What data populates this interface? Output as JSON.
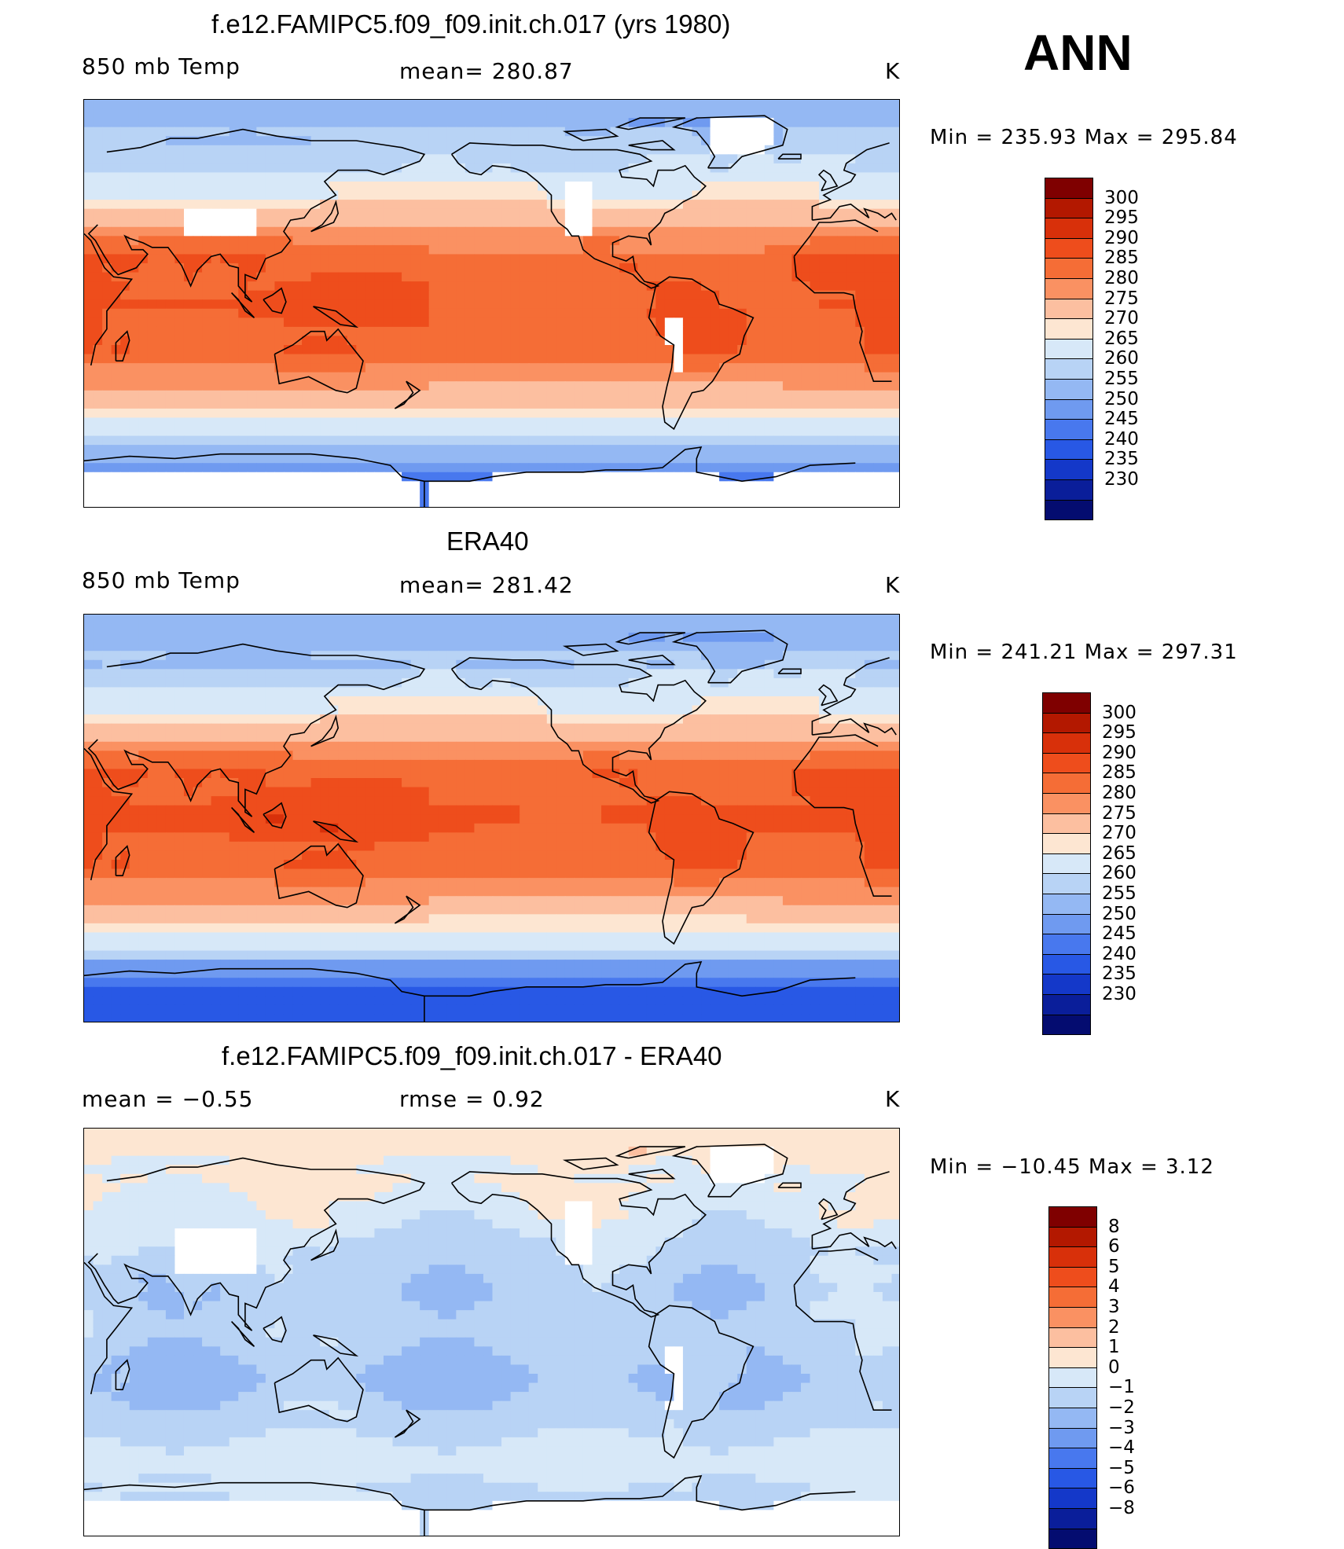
{
  "season": "ANN",
  "palette": {
    "temp": [
      "#7f0000",
      "#b31800",
      "#d8300a",
      "#ee4d1c",
      "#f56d36",
      "#fa9162",
      "#fcbfa0",
      "#fde6d2",
      "#d7e8f8",
      "#b8d3f5",
      "#94b8f3",
      "#6f9af0",
      "#4878ee",
      "#2858e5",
      "#1438c9",
      "#0a1e9a",
      "#040c70"
    ],
    "diff": [
      "#7f0000",
      "#b31800",
      "#d8300a",
      "#ee4d1c",
      "#f56d36",
      "#fa9162",
      "#fcbfa0",
      "#fde6d2",
      "#d7e8f8",
      "#b8d3f5",
      "#94b8f3",
      "#6f9af0",
      "#4878ee",
      "#2858e5",
      "#1438c9",
      "#0a1e9a",
      "#040c70"
    ]
  },
  "panels": [
    {
      "title": "f.e12.FAMIPC5.f09_f09.init.ch.017 (yrs 1980)",
      "left_label": "850 mb Temp",
      "center_label": "mean=  280.87",
      "units": "K",
      "stats": "Min  =  235.93  Max  =  295.84",
      "colorbar_levels": [
        "300",
        "295",
        "290",
        "285",
        "280",
        "275",
        "270",
        "265",
        "260",
        "255",
        "250",
        "245",
        "240",
        "235",
        "230"
      ]
    },
    {
      "title": "ERA40",
      "left_label": "850 mb Temp",
      "center_label": "mean=  281.42",
      "units": "K",
      "stats": "Min  =  241.21  Max  =  297.31",
      "colorbar_levels": [
        "300",
        "295",
        "290",
        "285",
        "280",
        "275",
        "270",
        "265",
        "260",
        "255",
        "250",
        "245",
        "240",
        "235",
        "230"
      ]
    },
    {
      "title": "f.e12.FAMIPC5.f09_f09.init.ch.017 - ERA40",
      "left_label": "mean  =    −0.55",
      "center_label": "rmse  =     0.92",
      "units": "K",
      "stats": "Min  =  −10.45  Max  =      3.12",
      "colorbar_levels": [
        "8",
        "6",
        "5",
        "4",
        "3",
        "2",
        "1",
        "0",
        "−1",
        "−2",
        "−3",
        "−4",
        "−5",
        "−6",
        "−8"
      ]
    }
  ],
  "chart_data": [
    {
      "type": "heatmap",
      "title": "f.e12.FAMIPC5.f09_f09.init.ch.017 (yrs 1980)",
      "variable": "850 mb Temp",
      "units": "K",
      "mean": 280.87,
      "min": 235.93,
      "max": 295.84,
      "contour_levels": [
        230,
        235,
        240,
        245,
        250,
        255,
        260,
        265,
        270,
        275,
        280,
        285,
        290,
        295,
        300
      ],
      "zonal_mean_by_lat": {
        "lat": [
          80,
          60,
          40,
          20,
          0,
          -20,
          -40,
          -60,
          -75
        ],
        "value": [
          258,
          268,
          277,
          287,
          290,
          288,
          278,
          264,
          248
        ]
      }
    },
    {
      "type": "heatmap",
      "title": "ERA40",
      "variable": "850 mb Temp",
      "units": "K",
      "mean": 281.42,
      "min": 241.21,
      "max": 297.31,
      "contour_levels": [
        230,
        235,
        240,
        245,
        250,
        255,
        260,
        265,
        270,
        275,
        280,
        285,
        290,
        295,
        300
      ],
      "zonal_mean_by_lat": {
        "lat": [
          80,
          60,
          40,
          20,
          0,
          -20,
          -40,
          -60,
          -75
        ],
        "value": [
          257,
          267,
          277,
          288,
          291,
          288,
          278,
          263,
          247
        ]
      }
    },
    {
      "type": "heatmap",
      "title": "f.e12.FAMIPC5.f09_f09.init.ch.017 - ERA40",
      "units": "K",
      "mean": -0.55,
      "rmse": 0.92,
      "min": -10.45,
      "max": 3.12,
      "contour_levels": [
        -8,
        -6,
        -5,
        -4,
        -3,
        -2,
        -1,
        0,
        1,
        2,
        3,
        4,
        5,
        6,
        8
      ],
      "zonal_mean_by_lat": {
        "lat": [
          80,
          60,
          40,
          20,
          0,
          -20,
          -40,
          -60,
          -75
        ],
        "value": [
          1.5,
          0.3,
          -0.3,
          -0.7,
          -0.9,
          -1.0,
          -0.5,
          0.5,
          -0.5
        ]
      }
    }
  ]
}
